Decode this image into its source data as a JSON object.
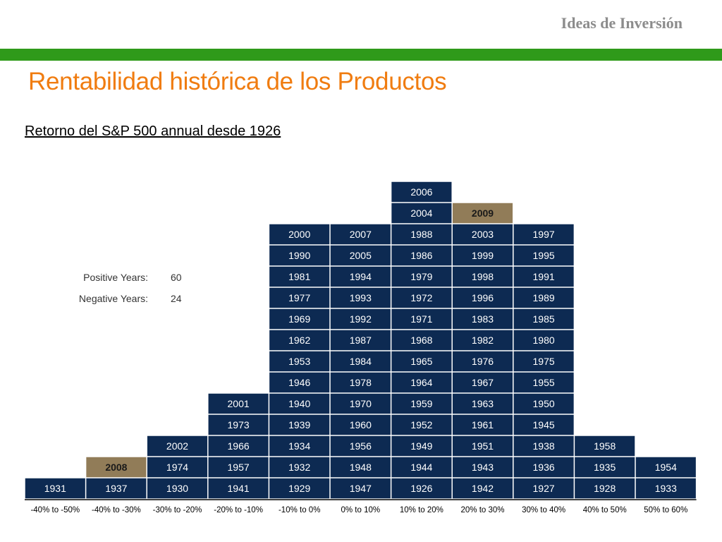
{
  "header": {
    "brand": "Ideas de Inversión",
    "title": "Rentabilidad histórica de los Productos",
    "subtitle": "Retorno del S&P 500 annual desde 1926"
  },
  "stats": [
    {
      "label": "Positive Years:",
      "value": "60"
    },
    {
      "label": "Negative Years:",
      "value": "24"
    }
  ],
  "colors": {
    "cell": "#0d2a52",
    "highlight": "#917c58",
    "cell_text": "#ffffff",
    "highlight_text": "#1a1a1a",
    "accent_bar": "#2f9a1a",
    "title": "#f07c10"
  },
  "chart_data": {
    "type": "histogram",
    "categories": [
      "-40% to -50%",
      "-40% to -30%",
      "-30% to -20%",
      "-20% to -10%",
      "-10% to 0%",
      "0% to 10%",
      "10% to 20%",
      "20% to 30%",
      "30% to 40%",
      "40% to 50%",
      "50% to 60%"
    ],
    "columns": [
      [
        "1931"
      ],
      [
        "1937",
        "2008"
      ],
      [
        "1930",
        "1974",
        "2002"
      ],
      [
        "1941",
        "1957",
        "1966",
        "1973",
        "2001"
      ],
      [
        "1929",
        "1932",
        "1934",
        "1939",
        "1940",
        "1946",
        "1953",
        "1962",
        "1969",
        "1977",
        "1981",
        "1990",
        "2000"
      ],
      [
        "1947",
        "1948",
        "1956",
        "1960",
        "1970",
        "1978",
        "1984",
        "1987",
        "1992",
        "1993",
        "1994",
        "2005",
        "2007"
      ],
      [
        "1926",
        "1944",
        "1949",
        "1952",
        "1959",
        "1964",
        "1965",
        "1968",
        "1971",
        "1972",
        "1979",
        "1986",
        "1988",
        "2004",
        "2006"
      ],
      [
        "1942",
        "1943",
        "1951",
        "1961",
        "1963",
        "1967",
        "1976",
        "1982",
        "1983",
        "1996",
        "1998",
        "1999",
        "2003",
        "2009"
      ],
      [
        "1927",
        "1936",
        "1938",
        "1945",
        "1950",
        "1955",
        "1975",
        "1980",
        "1985",
        "1989",
        "1991",
        "1995",
        "1997"
      ],
      [
        "1928",
        "1935",
        "1958"
      ],
      [
        "1933",
        "1954"
      ]
    ],
    "highlighted": [
      "2008",
      "2009"
    ]
  }
}
